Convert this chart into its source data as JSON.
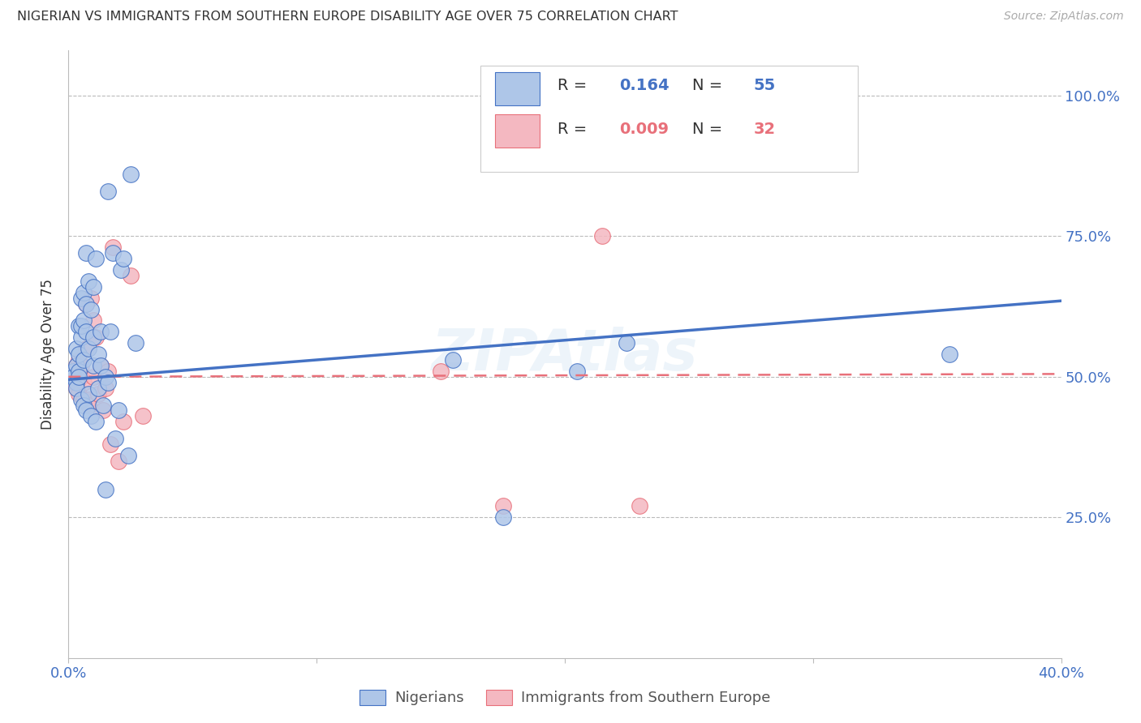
{
  "title": "NIGERIAN VS IMMIGRANTS FROM SOUTHERN EUROPE DISABILITY AGE OVER 75 CORRELATION CHART",
  "source": "Source: ZipAtlas.com",
  "ylabel": "Disability Age Over 75",
  "xlim": [
    0.0,
    0.4
  ],
  "ylim": [
    0.0,
    1.08
  ],
  "R_nigerian": 0.164,
  "N_nigerian": 55,
  "R_southern": 0.009,
  "N_southern": 32,
  "color_nigerian": "#aec6e8",
  "color_southern": "#f4b8c1",
  "color_nigerian_line": "#4472c4",
  "color_southern_line": "#e8707a",
  "color_nigerian_text": "#4472c4",
  "color_southern_text": "#e8707a",
  "legend_labels": [
    "Nigerians",
    "Immigrants from Southern Europe"
  ],
  "watermark": "ZIPAtlas",
  "nigerian_x": [
    0.002,
    0.002,
    0.003,
    0.003,
    0.003,
    0.003,
    0.004,
    0.004,
    0.004,
    0.004,
    0.005,
    0.005,
    0.005,
    0.005,
    0.006,
    0.006,
    0.006,
    0.006,
    0.007,
    0.007,
    0.007,
    0.007,
    0.008,
    0.008,
    0.008,
    0.009,
    0.009,
    0.01,
    0.01,
    0.01,
    0.011,
    0.011,
    0.012,
    0.012,
    0.013,
    0.013,
    0.014,
    0.015,
    0.015,
    0.016,
    0.016,
    0.017,
    0.018,
    0.019,
    0.02,
    0.021,
    0.022,
    0.024,
    0.025,
    0.027,
    0.155,
    0.175,
    0.205,
    0.225,
    0.355
  ],
  "nigerian_y": [
    0.51,
    0.5,
    0.52,
    0.49,
    0.55,
    0.48,
    0.54,
    0.51,
    0.5,
    0.59,
    0.57,
    0.46,
    0.64,
    0.59,
    0.53,
    0.45,
    0.65,
    0.6,
    0.44,
    0.72,
    0.63,
    0.58,
    0.55,
    0.47,
    0.67,
    0.62,
    0.43,
    0.52,
    0.57,
    0.66,
    0.42,
    0.71,
    0.48,
    0.54,
    0.52,
    0.58,
    0.45,
    0.5,
    0.3,
    0.83,
    0.49,
    0.58,
    0.72,
    0.39,
    0.44,
    0.69,
    0.71,
    0.36,
    0.86,
    0.56,
    0.53,
    0.25,
    0.51,
    0.56,
    0.54
  ],
  "southern_x": [
    0.002,
    0.003,
    0.003,
    0.004,
    0.004,
    0.005,
    0.005,
    0.006,
    0.006,
    0.007,
    0.007,
    0.008,
    0.008,
    0.009,
    0.01,
    0.01,
    0.011,
    0.012,
    0.013,
    0.014,
    0.015,
    0.016,
    0.017,
    0.018,
    0.02,
    0.022,
    0.025,
    0.03,
    0.15,
    0.175,
    0.215,
    0.23
  ],
  "southern_y": [
    0.49,
    0.52,
    0.48,
    0.53,
    0.47,
    0.5,
    0.52,
    0.46,
    0.49,
    0.55,
    0.63,
    0.46,
    0.45,
    0.64,
    0.5,
    0.6,
    0.57,
    0.47,
    0.52,
    0.44,
    0.48,
    0.51,
    0.38,
    0.73,
    0.35,
    0.42,
    0.68,
    0.43,
    0.51,
    0.27,
    0.75,
    0.27
  ],
  "nigerian_line_x0": 0.0,
  "nigerian_line_y0": 0.495,
  "nigerian_line_x1": 0.4,
  "nigerian_line_y1": 0.635,
  "southern_line_x0": 0.0,
  "southern_line_y0": 0.5,
  "southern_line_x1": 0.4,
  "southern_line_y1": 0.505
}
